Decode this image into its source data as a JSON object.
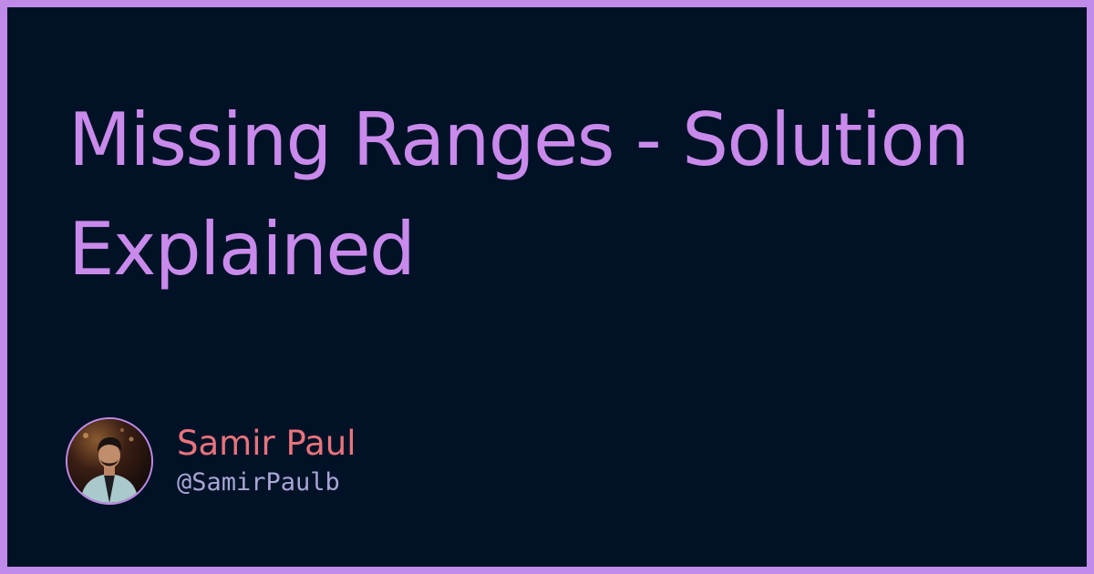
{
  "title": "Missing Ranges - Solution Explained",
  "author": {
    "name": "Samir Paul",
    "handle": "@SamirPaulb",
    "avatar_icon": "person-photo-icon"
  },
  "colors": {
    "border": "#C08AE8",
    "background": "#011227",
    "title": "#C98AEB",
    "author_name": "#E9747C",
    "author_handle": "#A9A6D6"
  }
}
